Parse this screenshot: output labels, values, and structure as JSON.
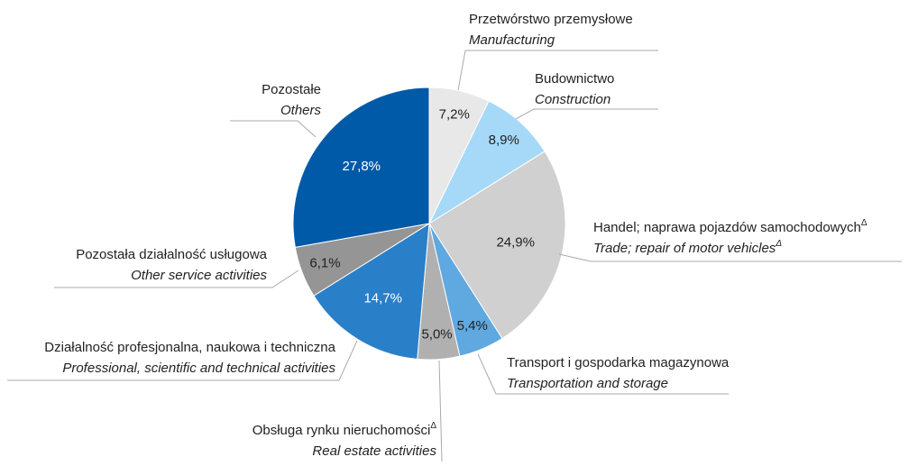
{
  "chart_data": {
    "type": "pie",
    "categories": [
      "Przetwórstwo przemysłowe",
      "Budownictwo",
      "Handel; naprawa pojazdów samochodowychΔ",
      "Transport i gospodarka magazynowa",
      "Obsługa rynku nieruchomościΔ",
      "Działalność profesjonalna, naukowa i techniczna",
      "Pozostała działalność usługowa",
      "Pozostałe"
    ],
    "categories_en": [
      "Manufacturing",
      "Construction",
      "Trade; repair of motor vehiclesΔ",
      "Transportation and storage",
      "Real estate activities",
      "Professional, scientific and technical activities",
      "Other service activities",
      "Others"
    ],
    "values": [
      7.2,
      8.9,
      24.9,
      5.4,
      5.0,
      14.7,
      6.1,
      27.8
    ],
    "value_labels": [
      "7,2%",
      "8,9%",
      "24,9%",
      "5,4%",
      "5,0%",
      "14,7%",
      "6,1%",
      "27,8%"
    ],
    "colors": [
      "#e8e8e8",
      "#a6d9f7",
      "#d0d0d0",
      "#5fa8e0",
      "#b0b0b0",
      "#2a7fc9",
      "#959595",
      "#005aa8"
    ]
  }
}
